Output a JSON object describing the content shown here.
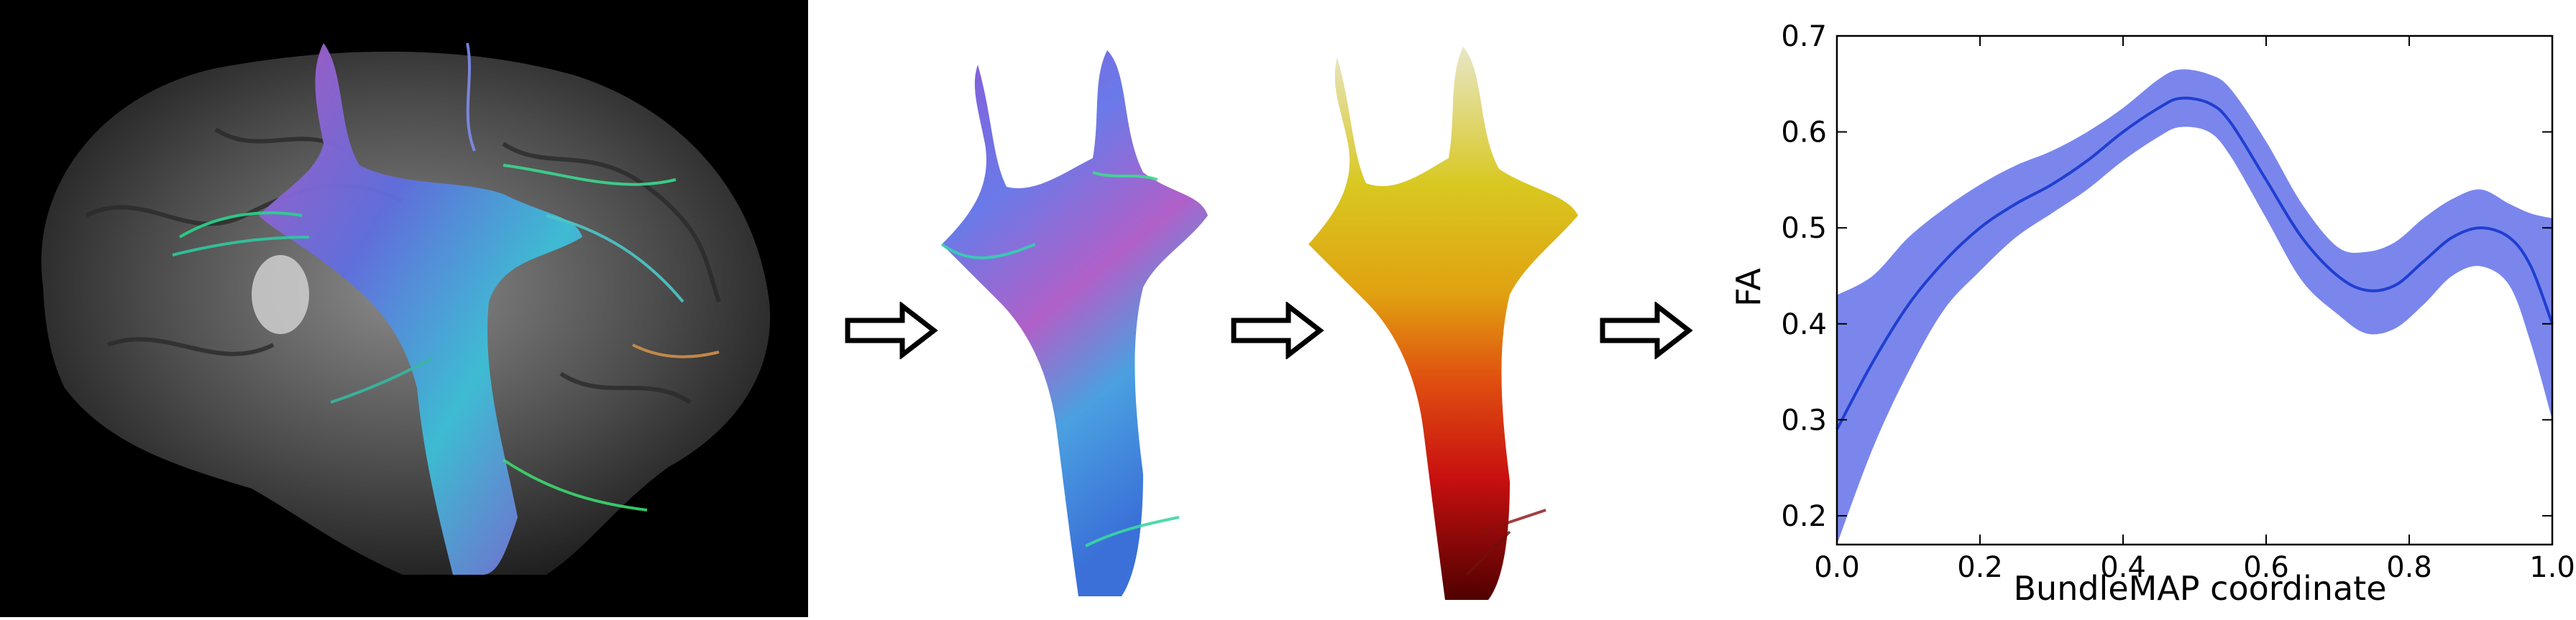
{
  "figure": {
    "panels": [
      "brain-tractography",
      "extracted-bundle",
      "fa-colored-bundle",
      "fa-profile-plot"
    ]
  },
  "chart_data": {
    "type": "line",
    "title": "",
    "xlabel": "BundleMAP coordinate",
    "ylabel": "FA",
    "xlim": [
      0.0,
      1.0
    ],
    "ylim": [
      0.17,
      0.7
    ],
    "xticks": [
      "0.0",
      "0.2",
      "0.4",
      "0.6",
      "0.8",
      "1.0"
    ],
    "yticks": [
      "0.2",
      "0.3",
      "0.4",
      "0.5",
      "0.6",
      "0.7"
    ],
    "grid": false,
    "legend": "none",
    "series": [
      {
        "x": [
          0.0,
          0.05,
          0.1,
          0.15,
          0.2,
          0.25,
          0.3,
          0.35,
          0.4,
          0.45,
          0.48,
          0.52,
          0.55,
          0.6,
          0.65,
          0.7,
          0.74,
          0.78,
          0.82,
          0.86,
          0.9,
          0.94,
          0.97,
          1.0
        ],
        "values": [
          0.29,
          0.36,
          0.42,
          0.465,
          0.5,
          0.525,
          0.545,
          0.57,
          0.6,
          0.625,
          0.635,
          0.63,
          0.61,
          0.55,
          0.49,
          0.45,
          0.435,
          0.44,
          0.465,
          0.49,
          0.5,
          0.49,
          0.46,
          0.4
        ],
        "band_upper": [
          0.43,
          0.45,
          0.49,
          0.52,
          0.545,
          0.565,
          0.58,
          0.6,
          0.625,
          0.655,
          0.665,
          0.66,
          0.645,
          0.59,
          0.525,
          0.48,
          0.475,
          0.485,
          0.51,
          0.53,
          0.54,
          0.525,
          0.515,
          0.51
        ],
        "band_lower": [
          0.17,
          0.27,
          0.35,
          0.415,
          0.455,
          0.49,
          0.515,
          0.54,
          0.57,
          0.595,
          0.605,
          0.6,
          0.575,
          0.51,
          0.445,
          0.41,
          0.39,
          0.395,
          0.42,
          0.45,
          0.46,
          0.44,
          0.38,
          0.3
        ]
      }
    ],
    "colors": {
      "line": "#1f3fd0",
      "band": "#7b86ec",
      "axis": "#000000"
    }
  }
}
